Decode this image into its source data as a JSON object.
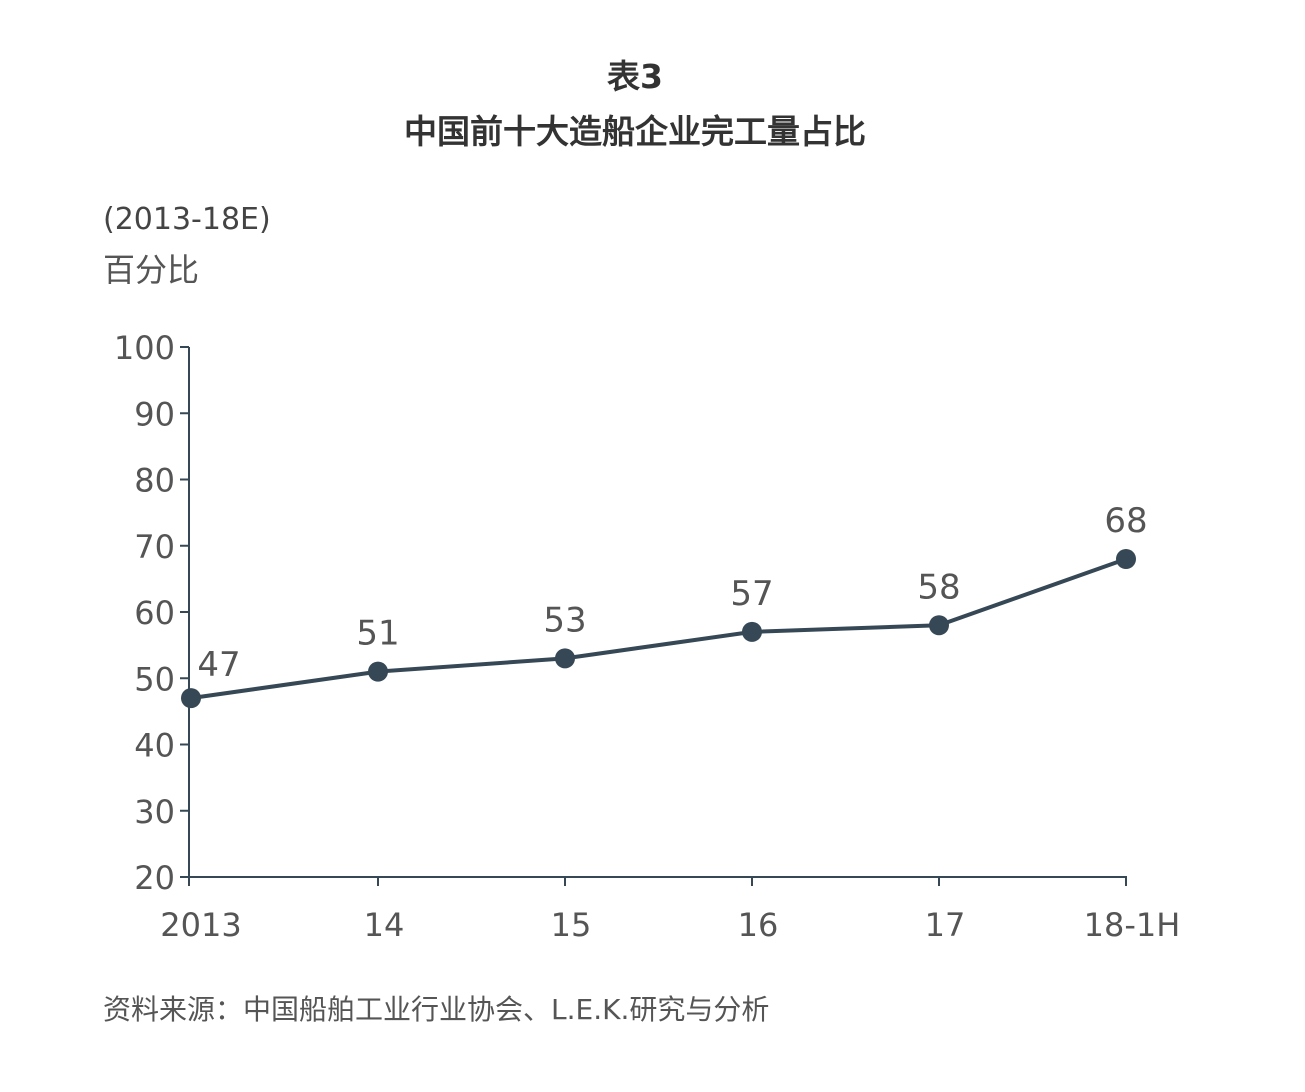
{
  "page": {
    "title": "表3",
    "subtitle": "中国前十大造船企业完工量占比"
  },
  "chart_data": {
    "type": "line",
    "title": "表3",
    "subtitle": "中国前十大造船企业完工量占比",
    "period": "(2013-18E)",
    "ylabel": "百分比",
    "xlabel": "",
    "categories": [
      "2013",
      "14",
      "15",
      "16",
      "17",
      "18-1H"
    ],
    "series": [
      {
        "values": [
          47,
          51,
          53,
          57,
          58,
          68
        ],
        "data_labels": [
          "47",
          "51",
          "53",
          "57",
          "58",
          "68"
        ],
        "color": "#364855"
      }
    ],
    "ylim": [
      20,
      100
    ],
    "yticks": [
      20,
      30,
      40,
      50,
      60,
      70,
      80,
      90,
      100
    ],
    "grid": false,
    "legend": "none",
    "axis_color": "#364855",
    "tick_label_color": "#555555"
  },
  "source": "资料来源：中国船舶工业行业协会、L.E.K.研究与分析"
}
